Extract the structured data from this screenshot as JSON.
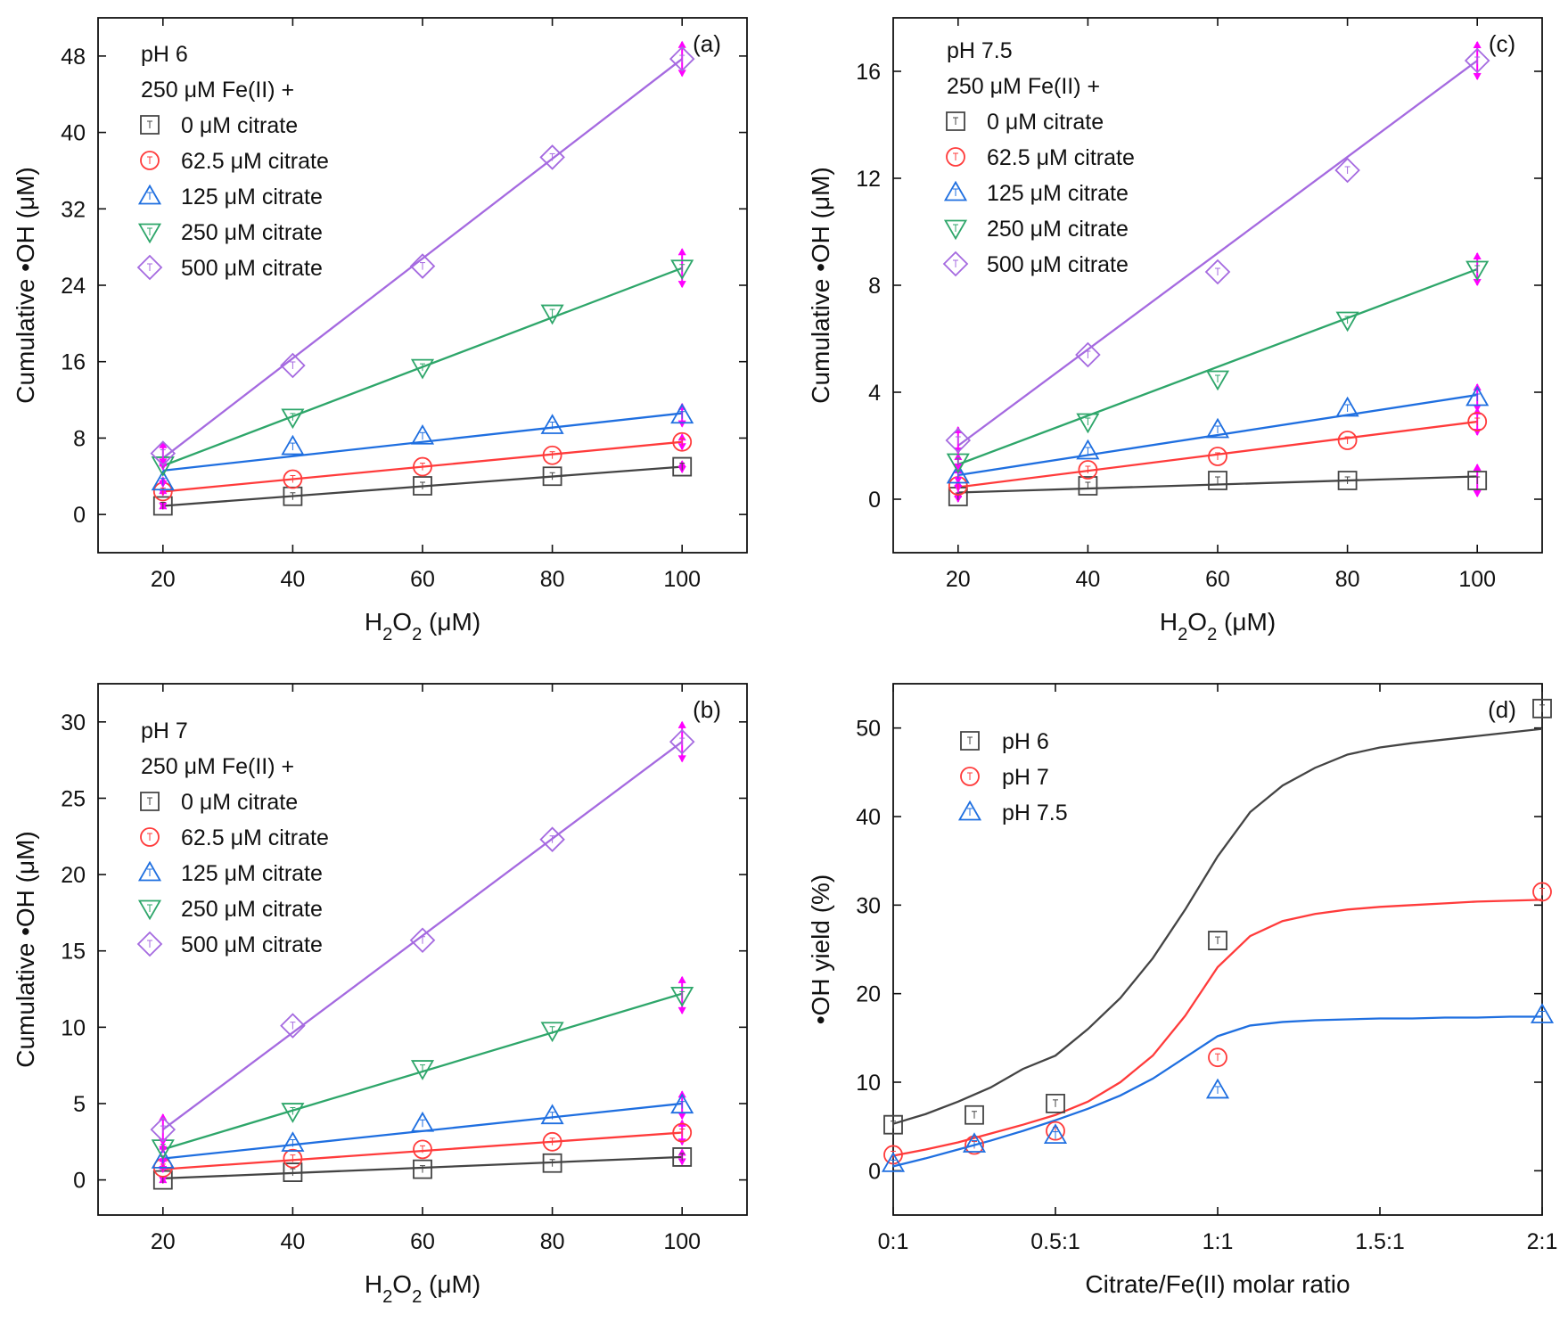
{
  "figure": {
    "colors": {
      "c0": "#444444",
      "c62": "#ff3b3b",
      "c125": "#1f6fe0",
      "c250": "#2ea66a",
      "c500": "#a56ae0",
      "errbar": "#ff00ff",
      "axis": "#111111"
    },
    "legend_header_line2": "250 μM Fe(II) +",
    "legend_items": [
      "0 μM citrate",
      "62.5 μM citrate",
      "125 μM citrate",
      "250 μM citrate",
      "500 μM citrate"
    ],
    "ph_legend_items": [
      "pH 6",
      "pH 7",
      "pH 7.5"
    ]
  },
  "chart_data": [
    {
      "id": "a",
      "type": "scatter",
      "panel_label": "(a)",
      "legend_header": "pH 6",
      "xlabel": "H2O2 (μM)",
      "ylabel": "Cumulative •OH (μM)",
      "xlim": [
        10,
        110
      ],
      "ylim": [
        -4,
        52
      ],
      "xticks": [
        20,
        40,
        60,
        80,
        100
      ],
      "xtick_labels": [
        "20",
        "40",
        "60",
        "80",
        "100"
      ],
      "yticks": [
        0,
        8,
        16,
        24,
        32,
        40,
        48
      ],
      "ytick_labels": [
        "0",
        "8",
        "16",
        "24",
        "32",
        "40",
        "48"
      ],
      "x": [
        20,
        40,
        60,
        80,
        100
      ],
      "series": [
        {
          "name": "0 μM citrate",
          "marker": "square",
          "values": [
            0.9,
            1.9,
            3.0,
            4.0,
            5.0
          ],
          "fit": [
            0.9,
            5.0
          ],
          "err": [
            0.3,
            0.3,
            0.3,
            0.3,
            0.6
          ]
        },
        {
          "name": "62.5 μM citrate",
          "marker": "circle",
          "values": [
            2.4,
            3.7,
            5.0,
            6.2,
            7.6
          ],
          "fit": [
            2.4,
            7.6
          ],
          "err": [
            0.4,
            0.4,
            0.4,
            0.4,
            0.8
          ]
        },
        {
          "name": "125 μM citrate",
          "marker": "triangle-up",
          "values": [
            3.4,
            7.1,
            8.2,
            9.3,
            10.4
          ],
          "fit": [
            4.6,
            10.6
          ],
          "err": [
            0.5,
            0.5,
            0.5,
            0.5,
            1.2
          ]
        },
        {
          "name": "250 μM citrate",
          "marker": "triangle-down",
          "values": [
            5.2,
            10.2,
            15.4,
            21.1,
            25.8
          ],
          "fit": [
            5.1,
            25.8
          ],
          "err": [
            0.5,
            0.5,
            0.5,
            0.5,
            2.0
          ]
        },
        {
          "name": "500 μM citrate",
          "marker": "diamond",
          "values": [
            6.4,
            15.6,
            26.0,
            37.4,
            47.7
          ],
          "fit": [
            5.9,
            47.7
          ],
          "err": [
            1.2,
            0.5,
            0.5,
            0.5,
            1.8
          ]
        }
      ]
    },
    {
      "id": "c",
      "type": "scatter",
      "panel_label": "(c)",
      "legend_header": "pH 7.5",
      "xlabel": "H2O2 (μM)",
      "ylabel": "Cumulative •OH (μM)",
      "xlim": [
        10,
        110
      ],
      "ylim": [
        -2,
        18
      ],
      "xticks": [
        20,
        40,
        60,
        80,
        100
      ],
      "xtick_labels": [
        "20",
        "40",
        "60",
        "80",
        "100"
      ],
      "yticks": [
        0,
        4,
        8,
        12,
        16
      ],
      "ytick_labels": [
        "0",
        "4",
        "8",
        "12",
        "16"
      ],
      "x": [
        20,
        40,
        60,
        80,
        100
      ],
      "series": [
        {
          "name": "0 μM citrate",
          "marker": "square",
          "values": [
            0.1,
            0.5,
            0.7,
            0.7,
            0.7
          ],
          "fit": [
            0.25,
            0.85
          ],
          "err": [
            0.2,
            0.2,
            0.2,
            0.2,
            0.6
          ]
        },
        {
          "name": "62.5 μM citrate",
          "marker": "circle",
          "values": [
            0.5,
            1.1,
            1.6,
            2.2,
            2.9
          ],
          "fit": [
            0.45,
            2.9
          ],
          "err": [
            0.2,
            0.2,
            0.2,
            0.2,
            0.5
          ]
        },
        {
          "name": "125 μM citrate",
          "marker": "triangle-up",
          "values": [
            0.9,
            1.8,
            2.6,
            3.4,
            3.8
          ],
          "fit": [
            0.9,
            3.9
          ],
          "err": [
            0.3,
            0.2,
            0.2,
            0.2,
            0.5
          ]
        },
        {
          "name": "250 μM citrate",
          "marker": "triangle-down",
          "values": [
            1.4,
            2.9,
            4.5,
            6.7,
            8.6
          ],
          "fit": [
            1.3,
            8.6
          ],
          "err": [
            0.3,
            0.2,
            0.3,
            0.2,
            0.6
          ]
        },
        {
          "name": "500 μM citrate",
          "marker": "diamond",
          "values": [
            2.2,
            5.4,
            8.5,
            12.3,
            16.4
          ],
          "fit": [
            2.0,
            16.4
          ],
          "err": [
            0.5,
            0.2,
            0.2,
            0.2,
            0.7
          ]
        }
      ]
    },
    {
      "id": "b",
      "type": "scatter",
      "panel_label": "(b)",
      "legend_header": "pH 7",
      "xlabel": "H2O2 (μM)",
      "ylabel": "Cumulative •OH (μM)",
      "xlim": [
        10,
        110
      ],
      "ylim": [
        -2.3,
        32.5
      ],
      "xticks": [
        20,
        40,
        60,
        80,
        100
      ],
      "xtick_labels": [
        "20",
        "40",
        "60",
        "80",
        "100"
      ],
      "yticks": [
        0,
        5,
        10,
        15,
        20,
        25,
        30
      ],
      "ytick_labels": [
        "0",
        "5",
        "10",
        "15",
        "20",
        "25",
        "30"
      ],
      "x": [
        20,
        40,
        60,
        80,
        100
      ],
      "series": [
        {
          "name": "0 μM citrate",
          "marker": "square",
          "values": [
            0.0,
            0.5,
            0.7,
            1.1,
            1.5
          ],
          "fit": [
            0.1,
            1.5
          ],
          "err": [
            0.2,
            0.2,
            0.2,
            0.2,
            0.5
          ]
        },
        {
          "name": "62.5 μM citrate",
          "marker": "circle",
          "values": [
            0.8,
            1.4,
            2.0,
            2.5,
            3.1
          ],
          "fit": [
            0.7,
            3.1
          ],
          "err": [
            0.3,
            0.3,
            0.3,
            0.3,
            0.8
          ]
        },
        {
          "name": "125 μM citrate",
          "marker": "triangle-up",
          "values": [
            1.3,
            2.4,
            3.7,
            4.2,
            4.9
          ],
          "fit": [
            1.4,
            5.0
          ],
          "err": [
            0.3,
            0.3,
            0.3,
            0.3,
            0.9
          ]
        },
        {
          "name": "250 μM citrate",
          "marker": "triangle-down",
          "values": [
            2.1,
            4.5,
            7.3,
            9.8,
            12.1
          ],
          "fit": [
            2.0,
            12.2
          ],
          "err": [
            0.3,
            0.3,
            0.3,
            0.3,
            1.2
          ]
        },
        {
          "name": "500 μM citrate",
          "marker": "diamond",
          "values": [
            3.3,
            10.1,
            15.7,
            22.3,
            28.7
          ],
          "fit": [
            3.3,
            28.7
          ],
          "err": [
            1.0,
            0.3,
            0.3,
            0.3,
            1.3
          ]
        }
      ]
    },
    {
      "id": "d",
      "type": "scatter",
      "panel_label": "(d)",
      "xlabel": "Citrate/Fe(II) molar ratio",
      "ylabel": "•OH yield (%)",
      "xlim": [
        0,
        2
      ],
      "ylim": [
        -5,
        55
      ],
      "xticks": [
        0,
        0.5,
        1,
        1.5,
        2
      ],
      "xtick_labels": [
        "0:1",
        "0.5:1",
        "1:1",
        "1.5:1",
        "2:1"
      ],
      "yticks": [
        0,
        10,
        20,
        30,
        40,
        50
      ],
      "ytick_labels": [
        "0",
        "10",
        "20",
        "30",
        "40",
        "50"
      ],
      "x": [
        0,
        0.25,
        0.5,
        1,
        2
      ],
      "series": [
        {
          "name": "pH 6",
          "marker": "square",
          "values": [
            5.2,
            6.3,
            7.6,
            26.0,
            52.2
          ],
          "curve_x": [
            0,
            0.1,
            0.2,
            0.3,
            0.4,
            0.5,
            0.6,
            0.7,
            0.8,
            0.9,
            1.0,
            1.1,
            1.2,
            1.3,
            1.4,
            1.5,
            1.6,
            1.7,
            1.8,
            1.9,
            2.0
          ],
          "curve_y": [
            5.3,
            6.4,
            7.8,
            9.4,
            11.5,
            13.0,
            16.0,
            19.5,
            24.0,
            29.5,
            35.5,
            40.5,
            43.5,
            45.5,
            47.0,
            47.8,
            48.3,
            48.7,
            49.1,
            49.5,
            49.9
          ]
        },
        {
          "name": "pH 7",
          "marker": "circle",
          "values": [
            1.8,
            2.9,
            4.5,
            12.8,
            31.5
          ],
          "curve_x": [
            0,
            0.1,
            0.2,
            0.3,
            0.4,
            0.5,
            0.6,
            0.7,
            0.8,
            0.9,
            1.0,
            1.1,
            1.2,
            1.3,
            1.4,
            1.5,
            1.6,
            1.7,
            1.8,
            1.9,
            2.0
          ],
          "curve_y": [
            1.7,
            2.4,
            3.2,
            4.2,
            5.2,
            6.3,
            7.8,
            10.0,
            13.0,
            17.5,
            23.0,
            26.5,
            28.2,
            29.0,
            29.5,
            29.8,
            30.0,
            30.2,
            30.4,
            30.5,
            30.6
          ]
        },
        {
          "name": "pH 7.5",
          "marker": "triangle-up",
          "values": [
            0.8,
            3.0,
            4.0,
            9.1,
            17.6
          ],
          "curve_x": [
            0,
            0.1,
            0.2,
            0.3,
            0.4,
            0.5,
            0.6,
            0.7,
            0.8,
            0.9,
            1.0,
            1.1,
            1.2,
            1.3,
            1.4,
            1.5,
            1.6,
            1.7,
            1.8,
            1.9,
            2.0
          ],
          "curve_y": [
            0.5,
            1.4,
            2.4,
            3.4,
            4.5,
            5.7,
            7.0,
            8.5,
            10.4,
            12.8,
            15.2,
            16.4,
            16.8,
            17.0,
            17.1,
            17.2,
            17.2,
            17.3,
            17.3,
            17.4,
            17.4
          ]
        }
      ]
    }
  ]
}
